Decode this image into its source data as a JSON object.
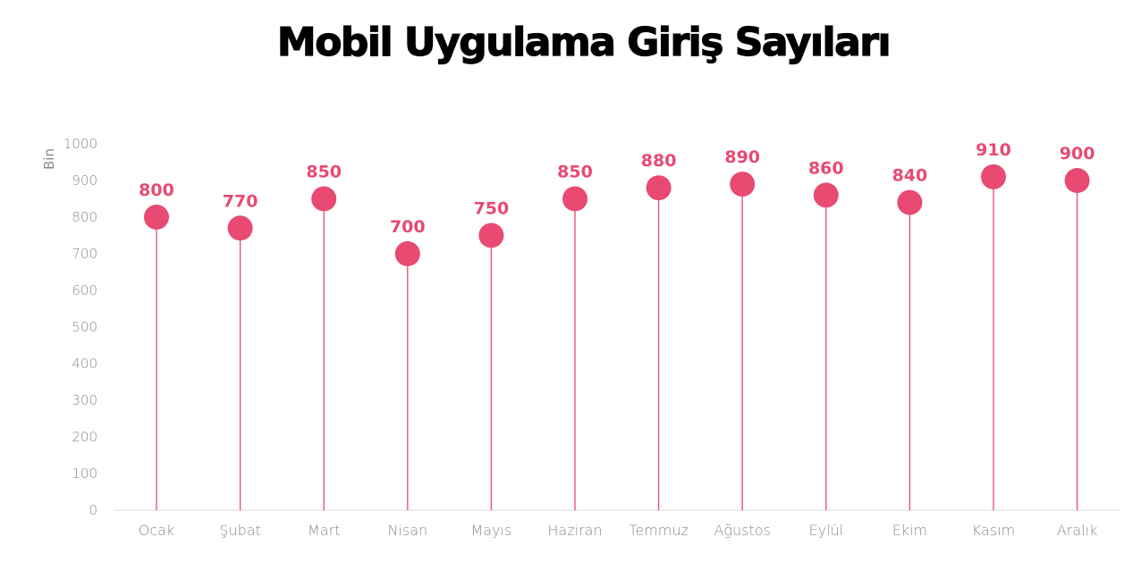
{
  "title": "Mobil Uygulama Giriş Sayıları",
  "colors": {
    "accent": "#e84a72",
    "axis_text": "#8a8a8a",
    "axis_line": "#d9d9d9"
  },
  "chart_data": {
    "type": "lollipop",
    "title": "Mobil Uygulama Giriş Sayıları",
    "ylabel": "Bin",
    "xlabel": "",
    "ylim": [
      0,
      1000
    ],
    "yticks": [
      0,
      100,
      200,
      300,
      400,
      500,
      600,
      700,
      800,
      900,
      1000
    ],
    "grid": false,
    "categories": [
      "Ocak",
      "Şubat",
      "Mart",
      "Nisan",
      "Mayıs",
      "Haziran",
      "Temmuz",
      "Ağustos",
      "Eylül",
      "Ekim",
      "Kasım",
      "Aralık"
    ],
    "values": [
      800,
      770,
      850,
      700,
      750,
      850,
      880,
      890,
      860,
      840,
      910,
      900
    ],
    "data_labels": [
      "800",
      "770",
      "850",
      "700",
      "750",
      "850",
      "880",
      "890",
      "860",
      "840",
      "910",
      "900"
    ]
  }
}
